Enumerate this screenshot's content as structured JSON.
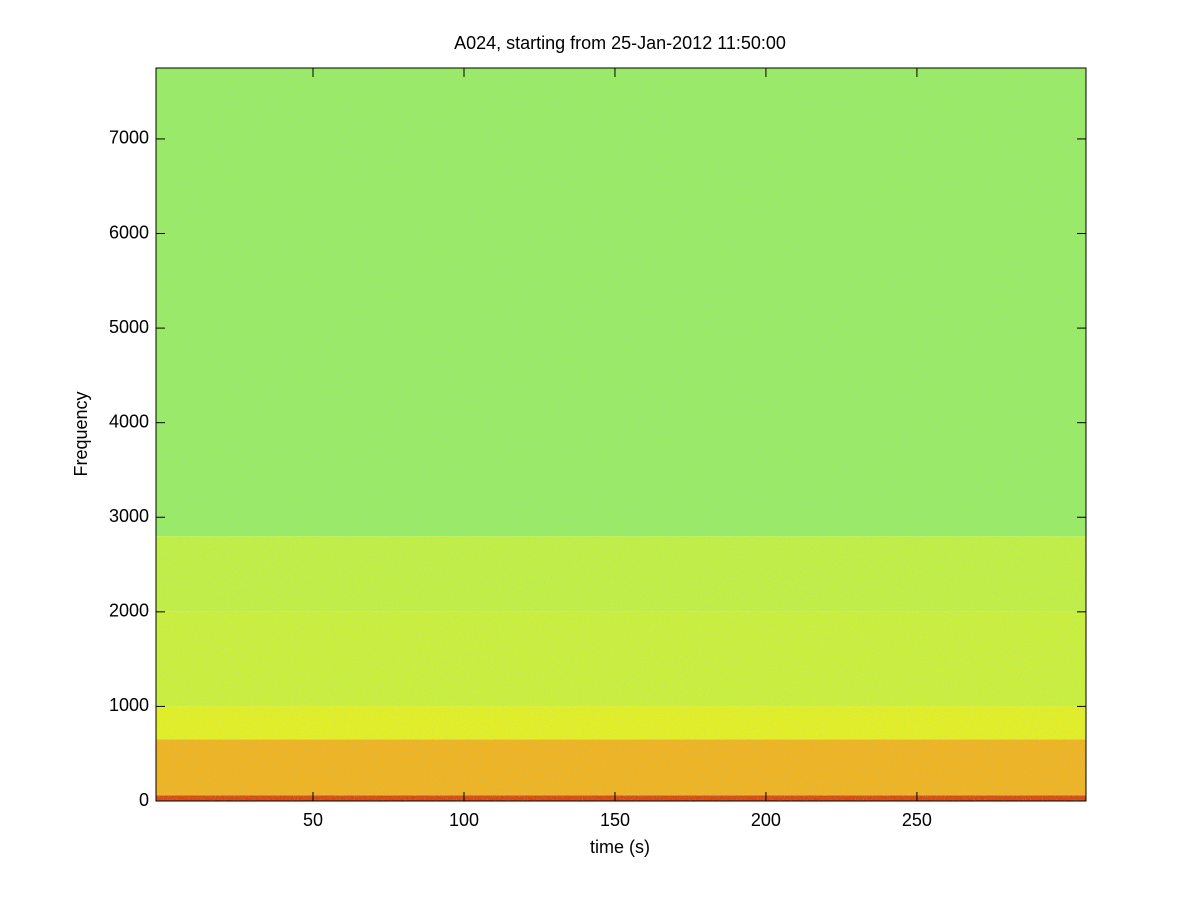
{
  "chart_data": {
    "type": "spectrogram",
    "title": "A024, starting from 25-Jan-2012 11:50:00",
    "x_label": "time (s)",
    "y_label": "Frequency",
    "xlim": [
      -2,
      306
    ],
    "ylim": [
      0,
      7750
    ],
    "xticks": [
      50,
      100,
      150,
      200,
      250
    ],
    "yticks": [
      0,
      1000,
      2000,
      3000,
      4000,
      5000,
      6000,
      7000
    ],
    "bands": [
      {
        "from": 0,
        "to": 60,
        "color": "#d84a10"
      },
      {
        "from": 60,
        "to": 650,
        "color": "#f2b21e"
      },
      {
        "from": 650,
        "to": 1000,
        "color": "#e6ee22"
      },
      {
        "from": 1000,
        "to": 2000,
        "color": "#cdef38"
      },
      {
        "from": 2000,
        "to": 2800,
        "color": "#c4ee40"
      },
      {
        "from": 2800,
        "to": 7750,
        "color": "#9cea62"
      }
    ]
  }
}
